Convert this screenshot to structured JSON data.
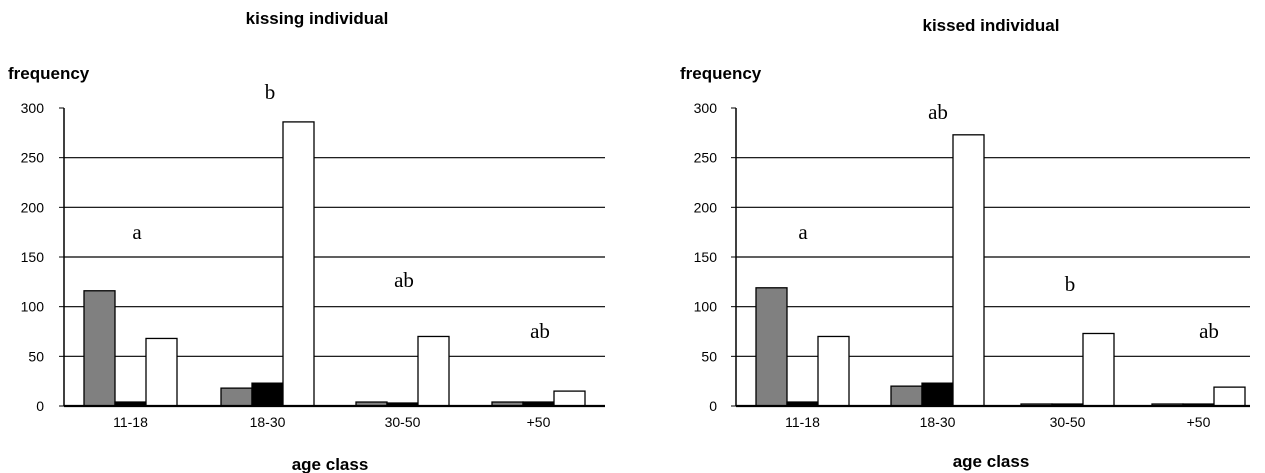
{
  "chart_data": [
    {
      "type": "bar",
      "title": "kissing individual",
      "ylabel": "frequency",
      "xlabel": "age class",
      "categories": [
        "11-18",
        "18-30",
        "30-50",
        "+50"
      ],
      "ylim": [
        0,
        300
      ],
      "yticks": [
        0,
        50,
        100,
        150,
        200,
        250,
        300
      ],
      "grid": true,
      "series": [
        {
          "color": "#808080",
          "values": [
            116,
            18,
            4,
            4
          ]
        },
        {
          "color": "#000000",
          "values": [
            4,
            23,
            3,
            4
          ]
        },
        {
          "color": "#ffffff",
          "values": [
            68,
            286,
            70,
            15
          ]
        }
      ],
      "annotations": [
        "a",
        "b",
        "ab",
        "ab"
      ]
    },
    {
      "type": "bar",
      "title": "kissed individual",
      "ylabel": "frequency",
      "xlabel": "age class",
      "categories": [
        "11-18",
        "18-30",
        "30-50",
        "+50"
      ],
      "ylim": [
        0,
        300
      ],
      "yticks": [
        0,
        50,
        100,
        150,
        200,
        250,
        300
      ],
      "grid": true,
      "series": [
        {
          "color": "#808080",
          "values": [
            119,
            20,
            2,
            2
          ]
        },
        {
          "color": "#000000",
          "values": [
            4,
            23,
            2,
            2
          ]
        },
        {
          "color": "#ffffff",
          "values": [
            70,
            273,
            73,
            19
          ]
        }
      ],
      "annotations": [
        "a",
        "ab",
        "b",
        "ab"
      ]
    }
  ]
}
